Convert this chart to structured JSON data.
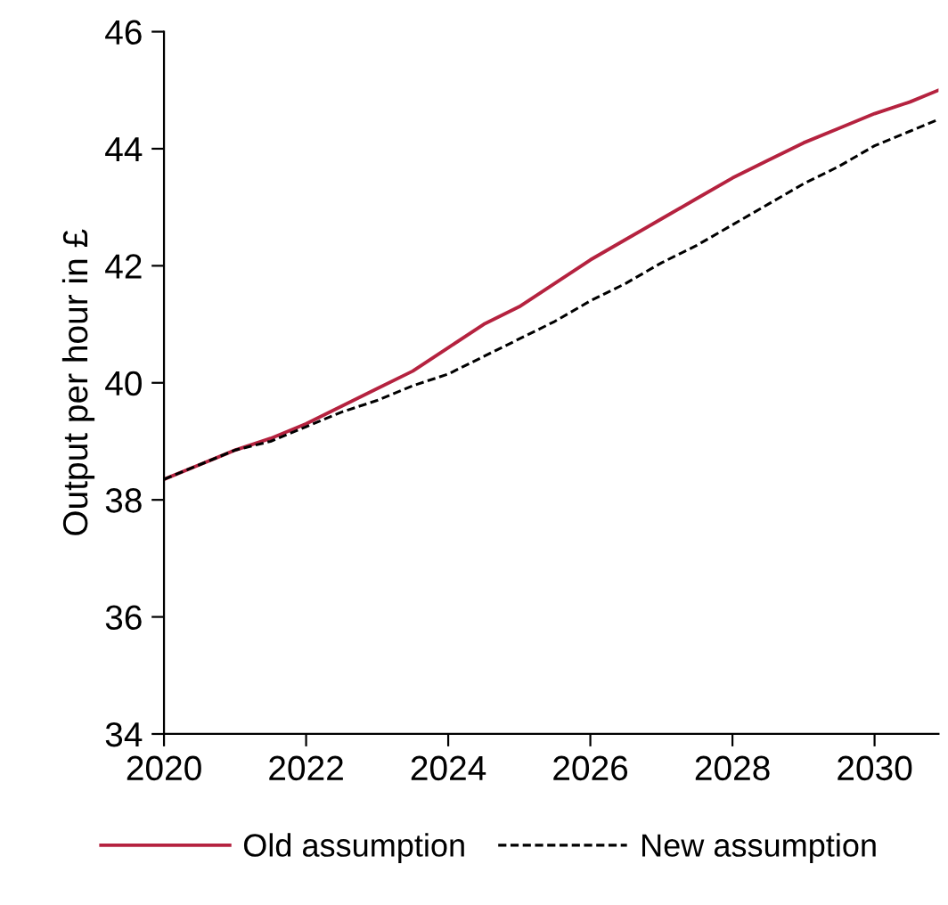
{
  "chart_data": {
    "type": "line",
    "ylabel": "Output per hour in £",
    "x": [
      2020,
      2020.5,
      2021,
      2021.5,
      2022,
      2022.5,
      2023,
      2023.5,
      2024,
      2024.5,
      2025,
      2025.5,
      2026,
      2026.5,
      2027,
      2027.5,
      2028,
      2028.5,
      2029,
      2029.5,
      2030,
      2030.5,
      2030.9
    ],
    "series": [
      {
        "name": "Old assumption",
        "color": "#b5223f",
        "line_style": "solid",
        "values": [
          38.35,
          38.6,
          38.85,
          39.05,
          39.3,
          39.6,
          39.9,
          40.2,
          40.6,
          41.0,
          41.3,
          41.7,
          42.1,
          42.45,
          42.8,
          43.15,
          43.5,
          43.8,
          44.1,
          44.35,
          44.6,
          44.8,
          45.0
        ]
      },
      {
        "name": "New assumption",
        "color": "#000000",
        "line_style": "dashed",
        "values": [
          38.35,
          38.6,
          38.85,
          39.0,
          39.25,
          39.5,
          39.7,
          39.95,
          40.15,
          40.45,
          40.75,
          41.05,
          41.4,
          41.7,
          42.05,
          42.35,
          42.7,
          43.05,
          43.4,
          43.7,
          44.05,
          44.3,
          44.5
        ]
      }
    ],
    "xlim": [
      2020,
      2030.9
    ],
    "xticks": [
      2020,
      2022,
      2024,
      2026,
      2028,
      2030
    ],
    "ylim": [
      34,
      46
    ],
    "yticks": [
      34,
      36,
      38,
      40,
      42,
      44,
      46
    ],
    "grid": false,
    "legend": "bottom",
    "marker": "none"
  }
}
